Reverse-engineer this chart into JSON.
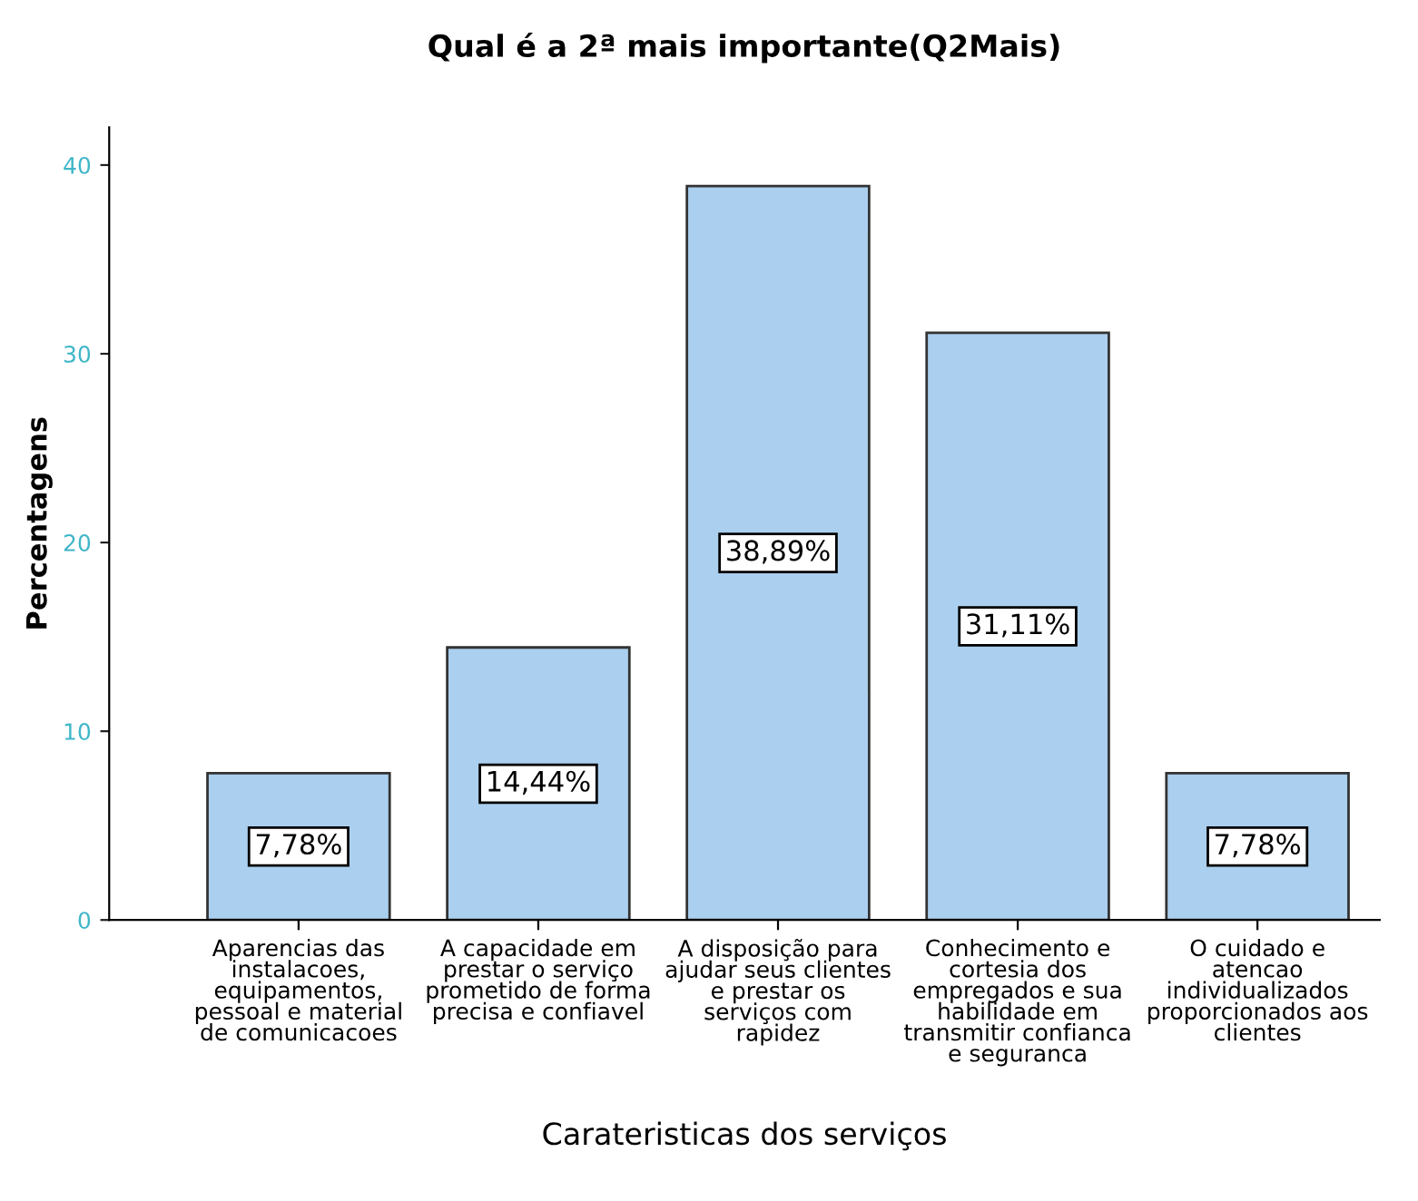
{
  "chart_data": {
    "type": "bar",
    "title": "Qual é a 2ª mais importante(Q2Mais)",
    "xlabel": "Carateristicas dos serviços",
    "ylabel": "Percentagens",
    "categories": [
      "Aparencias das\ninstalacoes,\nequipamentos,\npessoal e material\nde comunicacoes",
      "A capacidade em\nprestar o serviço\nprometido de forma\nprecisa e confiavel",
      "A disposição para\najudar seus clientes\ne prestar os\nserviços com\nrapidez",
      "Conhecimento e\ncortesia dos\nempregados e sua\nhabilidade em\ntransmitir confianca\ne seguranca",
      "O cuidado e\natencao\nindividualizados\nproporcionados aos\nclientes"
    ],
    "values": [
      7.78,
      14.44,
      38.89,
      31.11,
      7.78
    ],
    "value_labels": [
      "7,78%",
      "14,44%",
      "38,89%",
      "31,11%",
      "7,78%"
    ],
    "color": "#abcfee",
    "ylim": [
      0,
      42
    ],
    "yticks": [
      0,
      10,
      20,
      30,
      40
    ],
    "grid": false,
    "legend": false
  }
}
